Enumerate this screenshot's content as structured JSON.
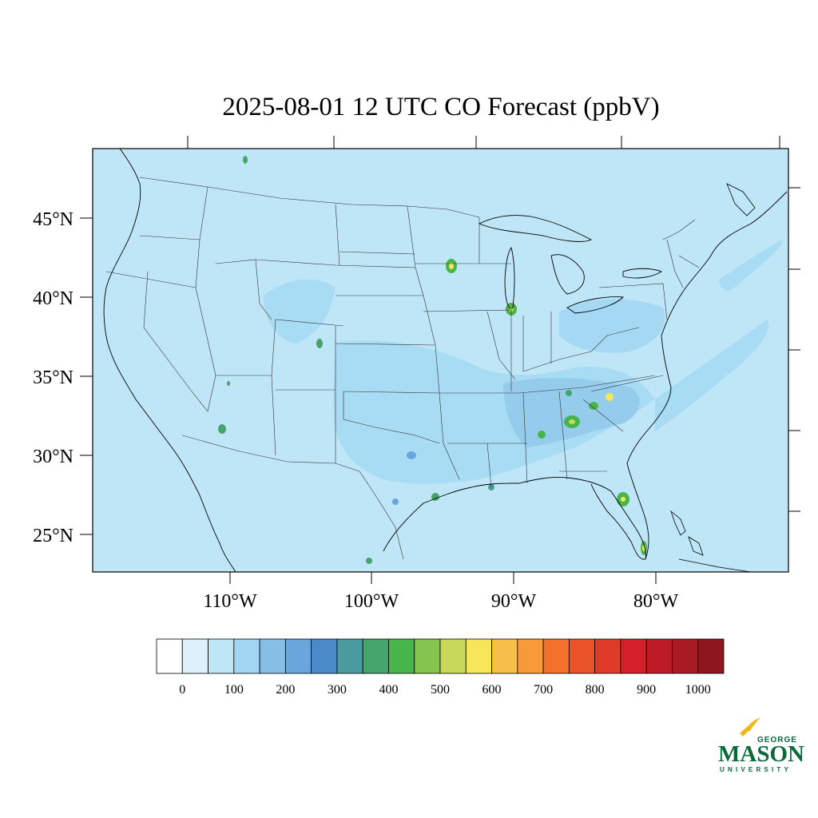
{
  "title": "2025-08-01 12 UTC CO Forecast (ppbV)",
  "map": {
    "background_color": "#bfe6f7",
    "latitude_labels": [
      "45°N",
      "40°N",
      "35°N",
      "30°N",
      "25°N"
    ],
    "longitude_labels": [
      "110°W",
      "100°W",
      "90°W",
      "80°W"
    ]
  },
  "colorbar": {
    "colors": [
      "#ffffff",
      "#dcf1fb",
      "#bfe6f7",
      "#a0d6f2",
      "#86bfe5",
      "#68a6dc",
      "#4a8ac8",
      "#4a9b9f",
      "#45a56c",
      "#47b64a",
      "#84c54f",
      "#c7d85a",
      "#f8e65a",
      "#f8be4a",
      "#f69a3a",
      "#f3712b",
      "#ea5229",
      "#e03a28",
      "#d42029",
      "#bf1b26",
      "#a81a22",
      "#8e161d"
    ],
    "labels": [
      "0",
      "100",
      "200",
      "300",
      "400",
      "500",
      "600",
      "700",
      "800",
      "900",
      "1000"
    ]
  },
  "logo": {
    "line1": "GEORGE",
    "line2": "MASON",
    "line3": "UNIVERSITY",
    "color": "#0a6a3a",
    "accent": "#f2b81b"
  }
}
